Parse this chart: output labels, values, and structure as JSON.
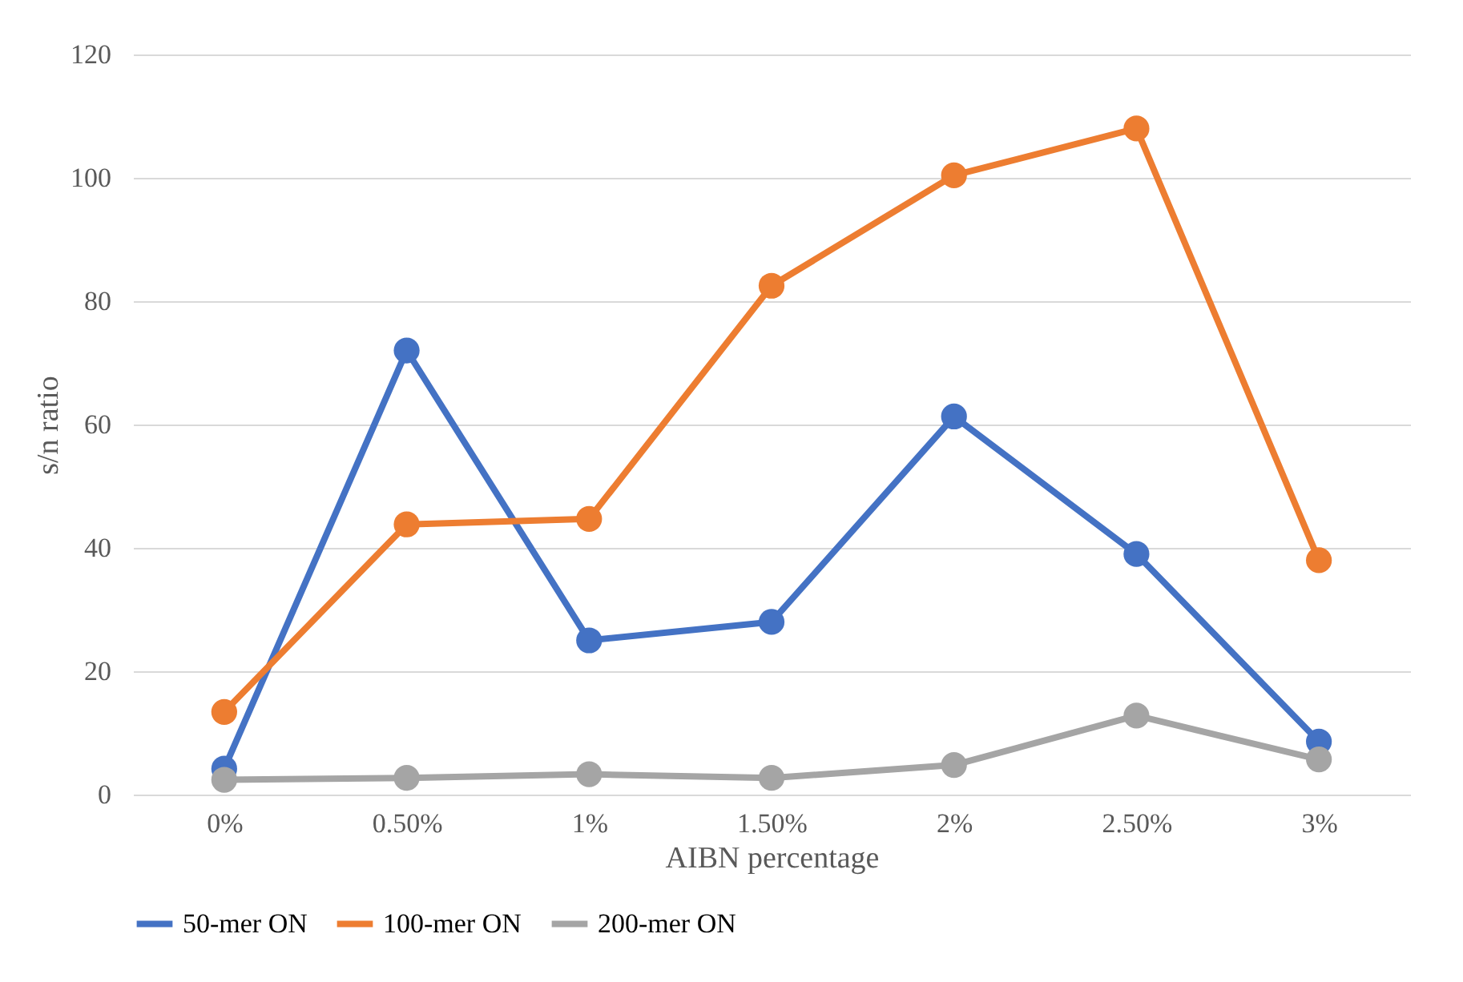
{
  "chart_data": {
    "type": "line",
    "xlabel": "AIBN percentage",
    "ylabel": "s/n ratio",
    "categories": [
      "0%",
      "0.50%",
      "1%",
      "1.50%",
      "2%",
      "2.50%",
      "3%"
    ],
    "series": [
      {
        "name": "50-mer ON",
        "color": "#4472c4",
        "values": [
          4.2,
          72,
          25,
          28,
          61.3,
          39,
          8.6
        ]
      },
      {
        "name": "100-mer ON",
        "color": "#ed7d31",
        "values": [
          13.4,
          43.8,
          44.7,
          82.5,
          100.4,
          108,
          38
        ]
      },
      {
        "name": "200-mer ON",
        "color": "#a5a5a5",
        "values": [
          2.4,
          2.7,
          3.3,
          2.7,
          4.8,
          12.8,
          5.7
        ]
      }
    ],
    "ylim": [
      0,
      120
    ],
    "yticks": [
      0,
      20,
      40,
      60,
      80,
      100,
      120
    ],
    "grid": "y",
    "legend": "bottom",
    "marker": "circle",
    "line_style": "solid"
  }
}
